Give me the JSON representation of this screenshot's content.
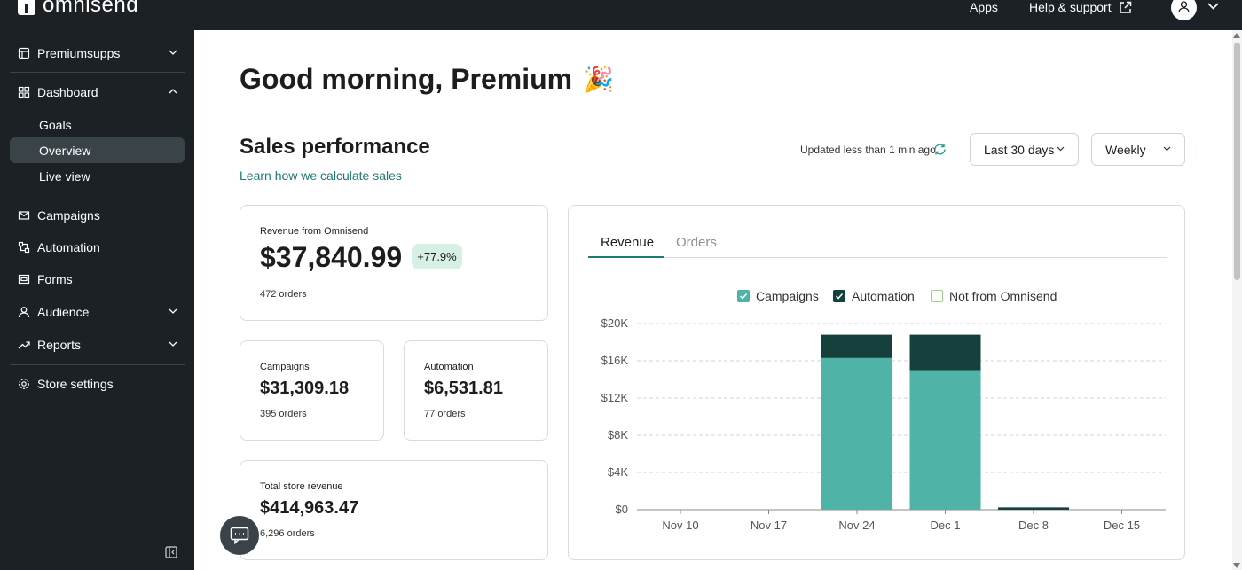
{
  "topbar": {
    "brand": "omnisend",
    "apps": "Apps",
    "help": "Help & support"
  },
  "sidebar": {
    "store": "Premiumsupps",
    "dashboard": "Dashboard",
    "sub": [
      "Goals",
      "Overview",
      "Live view"
    ],
    "items": [
      "Campaigns",
      "Automation",
      "Forms",
      "Audience",
      "Reports"
    ],
    "settings": "Store settings"
  },
  "main": {
    "greeting": "Good morning, Premium",
    "greeting_emoji": "🎉",
    "section_title": "Sales performance",
    "learn_link": "Learn how we calculate sales",
    "updated": "Updated less than 1 min ago",
    "period": "Last 30 days",
    "interval": "Weekly"
  },
  "cards": {
    "revenue": {
      "caption": "Revenue from Omnisend",
      "value": "$37,840.99",
      "change": "+77.9%",
      "orders_count": "472",
      "orders_label": "orders"
    },
    "campaigns": {
      "caption": "Campaigns",
      "value": "$31,309.18",
      "orders_count": "395",
      "orders_label": "orders"
    },
    "automation": {
      "caption": "Automation",
      "value": "$6,531.81",
      "orders_count": "77",
      "orders_label": "orders"
    },
    "total": {
      "caption": "Total store revenue",
      "value": "$414,963.47",
      "orders_count": "6,296",
      "orders_label": "orders"
    }
  },
  "chart_tabs": {
    "revenue": "Revenue",
    "orders": "Orders"
  },
  "colors": {
    "campaigns": "#4fb3a8",
    "automation": "#15403b",
    "not_from_omnisend": "#9bd18b",
    "accent": "#1f7a74"
  },
  "chart_data": {
    "type": "bar",
    "stacked": true,
    "categories": [
      "Nov 10",
      "Nov 17",
      "Nov 24",
      "Dec 1",
      "Dec 8",
      "Dec 15"
    ],
    "series": [
      {
        "name": "Campaigns",
        "values": [
          0,
          0,
          16300,
          15000,
          0,
          0
        ]
      },
      {
        "name": "Automation",
        "values": [
          0,
          0,
          2500,
          3800,
          250,
          0
        ]
      },
      {
        "name": "Not from Omnisend",
        "values": [
          0,
          0,
          0,
          0,
          0,
          0
        ]
      }
    ],
    "ylim": [
      0,
      20000
    ],
    "yticks": [
      "$0",
      "$4K",
      "$8K",
      "$12K",
      "$16K",
      "$20K"
    ],
    "grid": true,
    "legend": "top"
  }
}
